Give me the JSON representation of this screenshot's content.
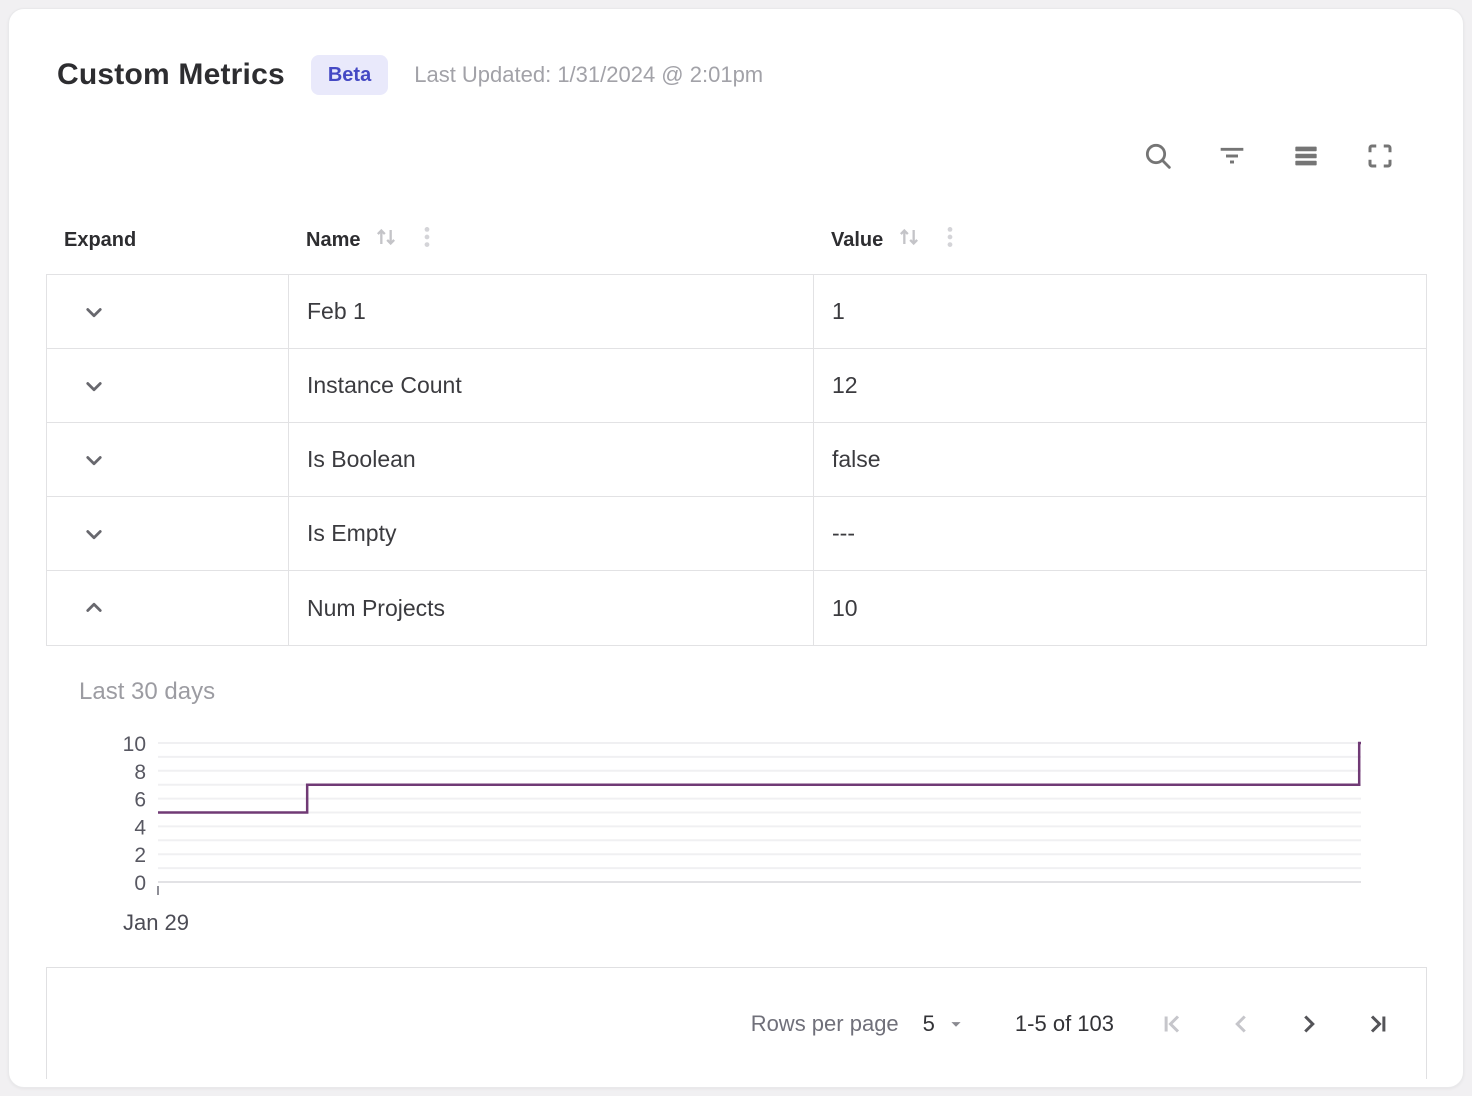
{
  "header": {
    "title": "Custom Metrics",
    "badge": "Beta",
    "last_updated": "Last Updated: 1/31/2024 @ 2:01pm"
  },
  "toolbar": {
    "icons": [
      "search-icon",
      "filter-icon",
      "density-icon",
      "fullscreen-icon"
    ]
  },
  "table": {
    "columns": [
      {
        "label": "Expand",
        "sortable": false
      },
      {
        "label": "Name",
        "sortable": true
      },
      {
        "label": "Value",
        "sortable": true
      }
    ],
    "rows": [
      {
        "name": "Feb 1",
        "value": "1",
        "expanded": false
      },
      {
        "name": "Instance Count",
        "value": "12",
        "expanded": false
      },
      {
        "name": "Is Boolean",
        "value": "false",
        "expanded": false
      },
      {
        "name": "Is Empty",
        "value": "---",
        "expanded": false
      },
      {
        "name": "Num Projects",
        "value": "10",
        "expanded": true
      }
    ]
  },
  "chart_data": {
    "type": "line",
    "title": "Last 30 days",
    "xlabel": "",
    "ylabel": "",
    "x_tick_labels": [
      "Jan 29"
    ],
    "y_ticks": [
      0,
      2,
      4,
      6,
      8,
      10
    ],
    "ylim": [
      0,
      10
    ],
    "grid": true,
    "step": "after",
    "line_color": "#703a75",
    "series": [
      {
        "name": "Num Projects",
        "points": [
          [
            0,
            5
          ],
          [
            0.124,
            5
          ],
          [
            0.124,
            7
          ],
          [
            0.9985,
            7
          ],
          [
            0.9985,
            10
          ],
          [
            1,
            10
          ]
        ]
      }
    ]
  },
  "footer": {
    "rows_per_page_label": "Rows per page",
    "rows_per_page_value": "5",
    "range_label": "1-5 of 103",
    "pagination": [
      {
        "name": "first-page",
        "enabled": false
      },
      {
        "name": "previous-page",
        "enabled": false
      },
      {
        "name": "next-page",
        "enabled": true
      },
      {
        "name": "last-page",
        "enabled": true
      }
    ]
  },
  "colors": {
    "accent": "#4549c4",
    "badge_bg": "#e9e9fb",
    "line": "#703a75"
  }
}
